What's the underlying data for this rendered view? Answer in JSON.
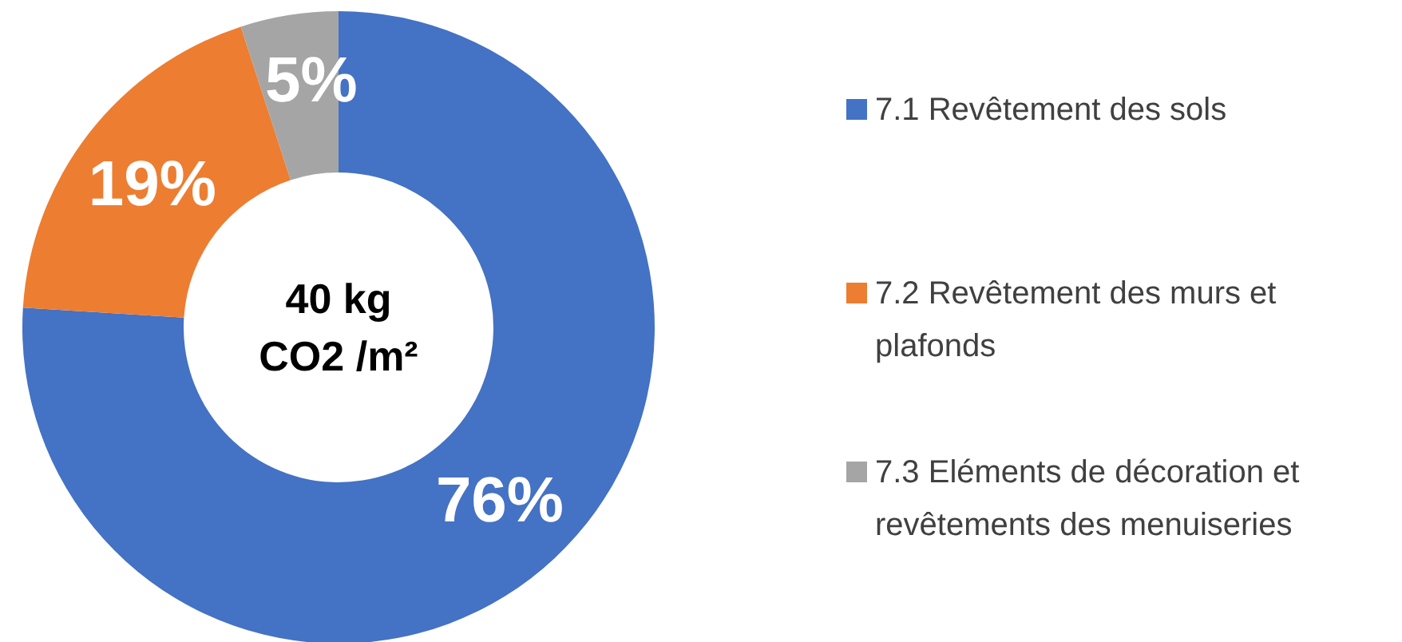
{
  "chart_data": {
    "type": "donut",
    "categories": [
      "7.1 Revêtement des sols",
      "7.2 Revêtement des murs et plafonds",
      "7.3 Eléments de décoration et revêtements des menuiseries"
    ],
    "values": [
      76,
      19,
      5
    ],
    "colors": [
      "#4472c4",
      "#ed7d31",
      "#a5a5a5"
    ],
    "value_labels": [
      "76%",
      "19%",
      "5%"
    ],
    "legend": "right",
    "annotations": [
      "40 kg CO2 /m²"
    ]
  }
}
